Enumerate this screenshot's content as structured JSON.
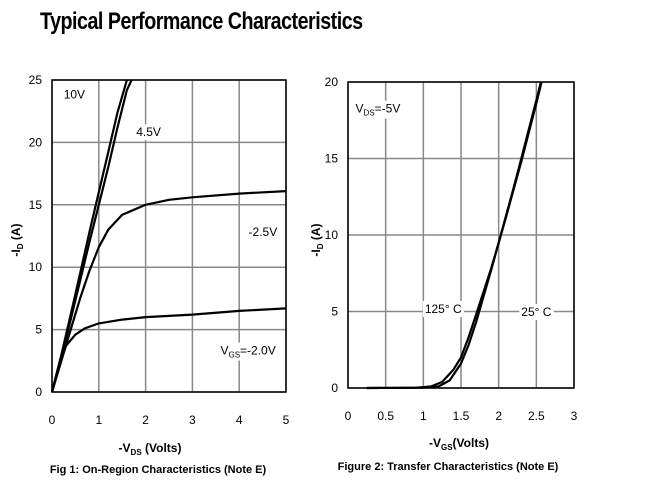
{
  "page": {
    "title": "Typical Performance Characteristics"
  },
  "chart_data": [
    {
      "type": "line",
      "caption": "Fig 1: On-Region Characteristics (Note E)",
      "xlabel": "-VDS (Volts)",
      "ylabel": "-ID (A)",
      "xlim": [
        0,
        5
      ],
      "ylim": [
        0,
        25
      ],
      "xticks": [
        0,
        1,
        2,
        3,
        4,
        5
      ],
      "yticks": [
        0,
        5,
        10,
        15,
        20,
        25
      ],
      "grid": true,
      "series": [
        {
          "name": "10V",
          "points": [
            [
              0,
              0
            ],
            [
              0.2,
              3
            ],
            [
              0.4,
              6.2
            ],
            [
              0.6,
              9.5
            ],
            [
              0.8,
              12.8
            ],
            [
              1.0,
              16
            ],
            [
              1.2,
              19.2
            ],
            [
              1.4,
              22.4
            ],
            [
              1.6,
              25
            ]
          ]
        },
        {
          "name": "4.5V",
          "points": [
            [
              0,
              0
            ],
            [
              0.2,
              2.8
            ],
            [
              0.4,
              5.8
            ],
            [
              0.6,
              8.9
            ],
            [
              0.8,
              12
            ],
            [
              1.0,
              15
            ],
            [
              1.2,
              18
            ],
            [
              1.4,
              21.2
            ],
            [
              1.6,
              24.2
            ],
            [
              1.7,
              25
            ]
          ]
        },
        {
          "name": "-2.5V",
          "points": [
            [
              0,
              0
            ],
            [
              0.2,
              2.5
            ],
            [
              0.4,
              5
            ],
            [
              0.6,
              7.5
            ],
            [
              0.8,
              9.7
            ],
            [
              1.0,
              11.6
            ],
            [
              1.2,
              13
            ],
            [
              1.5,
              14.2
            ],
            [
              2.0,
              15
            ],
            [
              2.5,
              15.4
            ],
            [
              3,
              15.6
            ],
            [
              4,
              15.9
            ],
            [
              5,
              16.1
            ]
          ]
        },
        {
          "name": "VGS=-2.0V",
          "points": [
            [
              0,
              0
            ],
            [
              0.1,
              1.5
            ],
            [
              0.2,
              2.8
            ],
            [
              0.3,
              3.7
            ],
            [
              0.5,
              4.6
            ],
            [
              0.7,
              5.1
            ],
            [
              1,
              5.5
            ],
            [
              1.5,
              5.8
            ],
            [
              2,
              6
            ],
            [
              3,
              6.2
            ],
            [
              4,
              6.5
            ],
            [
              5,
              6.7
            ]
          ]
        }
      ],
      "annotations": [
        {
          "text": "10V",
          "x": 0.25,
          "y": 23.5
        },
        {
          "text": "4.5V",
          "x": 1.8,
          "y": 20.5
        },
        {
          "text": "-2.5V",
          "x": 4.2,
          "y": 12.5
        },
        {
          "text": "V",
          "sub": "GS",
          "rest": "=-2.0V",
          "x": 3.6,
          "y": 3.0
        }
      ]
    },
    {
      "type": "line",
      "caption": "Figure 2: Transfer Characteristics (Note E)",
      "xlabel": "-VGS(Volts)",
      "ylabel": "-ID (A)",
      "xlim": [
        0,
        3
      ],
      "ylim": [
        0,
        20
      ],
      "xticks": [
        0,
        0.5,
        1,
        1.5,
        2,
        2.5,
        3
      ],
      "yticks": [
        0,
        5,
        10,
        15,
        20
      ],
      "grid": true,
      "series": [
        {
          "name": "125° C",
          "points": [
            [
              0.25,
              0
            ],
            [
              0.9,
              0.02
            ],
            [
              1.1,
              0.1
            ],
            [
              1.25,
              0.4
            ],
            [
              1.4,
              1.2
            ],
            [
              1.5,
              2
            ],
            [
              1.6,
              3.3
            ],
            [
              1.7,
              4.8
            ],
            [
              1.8,
              6.3
            ],
            [
              1.9,
              7.8
            ],
            [
              2.0,
              9.5
            ],
            [
              2.1,
              11.2
            ],
            [
              2.2,
              13
            ],
            [
              2.3,
              14.8
            ],
            [
              2.4,
              16.7
            ],
            [
              2.5,
              18.6
            ],
            [
              2.57,
              20
            ]
          ]
        },
        {
          "name": "25° C",
          "points": [
            [
              0.25,
              0
            ],
            [
              1.0,
              0.02
            ],
            [
              1.2,
              0.1
            ],
            [
              1.35,
              0.5
            ],
            [
              1.5,
              1.6
            ],
            [
              1.6,
              2.8
            ],
            [
              1.7,
              4.3
            ],
            [
              1.8,
              6
            ],
            [
              1.9,
              7.7
            ],
            [
              2.0,
              9.5
            ],
            [
              2.1,
              11.3
            ],
            [
              2.2,
              13.1
            ],
            [
              2.3,
              15
            ],
            [
              2.4,
              16.9
            ],
            [
              2.5,
              18.8
            ],
            [
              2.56,
              20
            ]
          ]
        }
      ],
      "annotations": [
        {
          "text": "V",
          "sub": "DS",
          "rest": "=-5V",
          "x": 0.1,
          "y": 18.0
        },
        {
          "text": "125° C",
          "x": 1.02,
          "y": 4.9
        },
        {
          "text": "25° C",
          "x": 2.3,
          "y": 4.7
        }
      ]
    }
  ]
}
